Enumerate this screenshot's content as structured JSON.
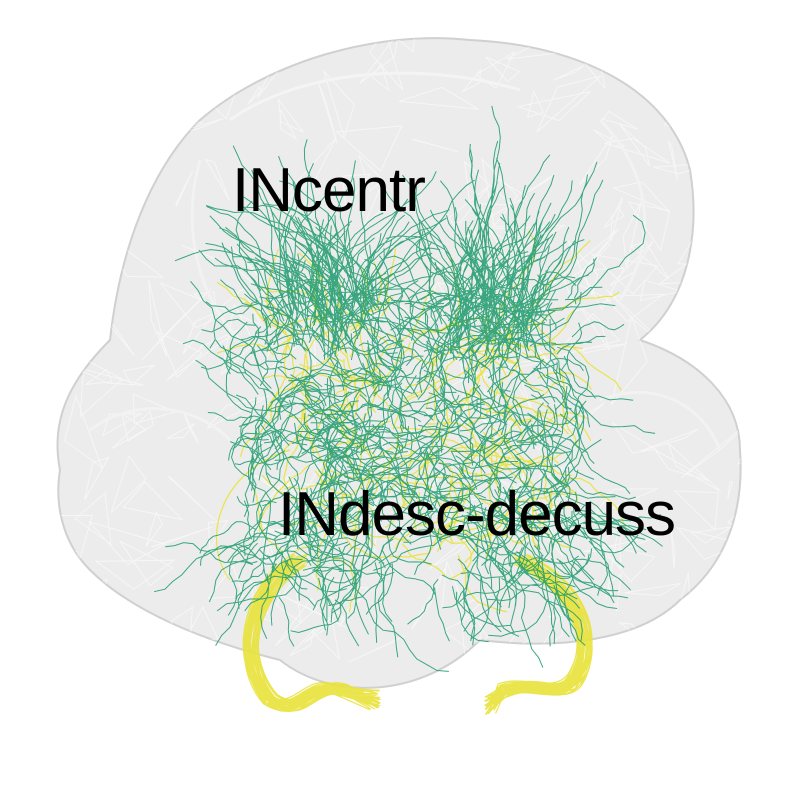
{
  "labels": {
    "central": "INcentr",
    "descending": "INdesc-decuss"
  },
  "colors": {
    "background": "#ffffff",
    "brain_mesh_fill": "#e4e4e4",
    "brain_mesh_edge": "#d2d2d2",
    "neuron_green": "#1a9a6c",
    "neuron_yellow": "#e9e23a",
    "label_text": "#000000"
  }
}
